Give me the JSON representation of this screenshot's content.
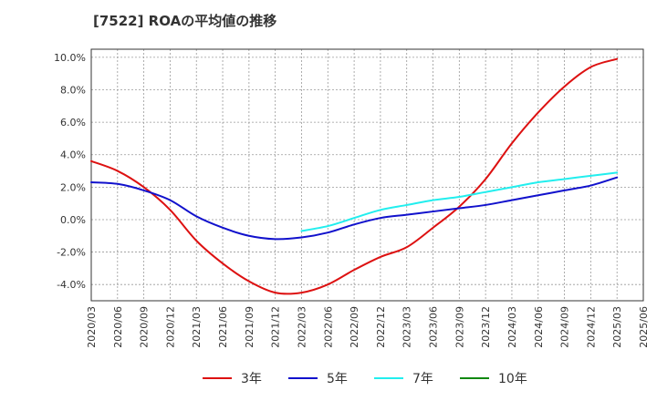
{
  "chart_data": {
    "type": "line",
    "title": "[7522]  ROAの平均値の推移",
    "xlabel": "",
    "ylabel": "",
    "ylim": [
      -5.0,
      10.5
    ],
    "y_ticks": [
      -4.0,
      -2.0,
      0.0,
      2.0,
      4.0,
      6.0,
      8.0,
      10.0
    ],
    "y_tick_labels": [
      "-4.0%",
      "-2.0%",
      "0.0%",
      "2.0%",
      "4.0%",
      "6.0%",
      "8.0%",
      "10.0%"
    ],
    "x_tick_labels": [
      "2020/03",
      "2020/06",
      "2020/09",
      "2020/12",
      "2021/03",
      "2021/06",
      "2021/09",
      "2021/12",
      "2022/03",
      "2022/06",
      "2022/09",
      "2022/12",
      "2023/03",
      "2023/06",
      "2023/09",
      "2023/12",
      "2024/03",
      "2024/06",
      "2024/09",
      "2024/12",
      "2025/03",
      "2025/06"
    ],
    "grid": true,
    "legend_position": "bottom",
    "colors": {
      "3年": "#dd1111",
      "5年": "#1111cc",
      "7年": "#22eeee",
      "10年": "#118811"
    },
    "series": [
      {
        "name": "3年",
        "x": [
          "2020/03",
          "2020/06",
          "2020/09",
          "2020/12",
          "2021/03",
          "2021/06",
          "2021/09",
          "2021/12",
          "2022/03",
          "2022/06",
          "2022/09",
          "2022/12",
          "2023/03",
          "2023/06",
          "2023/09",
          "2023/12",
          "2024/03",
          "2024/06",
          "2024/09",
          "2024/12",
          "2025/03"
        ],
        "values": [
          3.6,
          3.0,
          2.0,
          0.6,
          -1.3,
          -2.7,
          -3.8,
          -4.5,
          -4.5,
          -4.0,
          -3.1,
          -2.3,
          -1.7,
          -0.5,
          0.8,
          2.5,
          4.7,
          6.6,
          8.2,
          9.4,
          9.9
        ]
      },
      {
        "name": "5年",
        "x": [
          "2020/03",
          "2020/06",
          "2020/09",
          "2020/12",
          "2021/03",
          "2021/06",
          "2021/09",
          "2021/12",
          "2022/03",
          "2022/06",
          "2022/09",
          "2022/12",
          "2023/03",
          "2023/06",
          "2023/09",
          "2023/12",
          "2024/03",
          "2024/06",
          "2024/09",
          "2024/12",
          "2025/03"
        ],
        "values": [
          2.3,
          2.2,
          1.8,
          1.2,
          0.2,
          -0.5,
          -1.0,
          -1.2,
          -1.1,
          -0.8,
          -0.3,
          0.1,
          0.3,
          0.5,
          0.7,
          0.9,
          1.2,
          1.5,
          1.8,
          2.1,
          2.6
        ]
      },
      {
        "name": "7年",
        "x": [
          "2022/03",
          "2022/06",
          "2022/09",
          "2022/12",
          "2023/03",
          "2023/06",
          "2023/09",
          "2023/12",
          "2024/03",
          "2024/06",
          "2024/09",
          "2024/12",
          "2025/03"
        ],
        "values": [
          -0.7,
          -0.4,
          0.1,
          0.6,
          0.9,
          1.2,
          1.4,
          1.7,
          2.0,
          2.3,
          2.5,
          2.7,
          2.9
        ]
      },
      {
        "name": "10年",
        "x": [],
        "values": []
      }
    ]
  }
}
